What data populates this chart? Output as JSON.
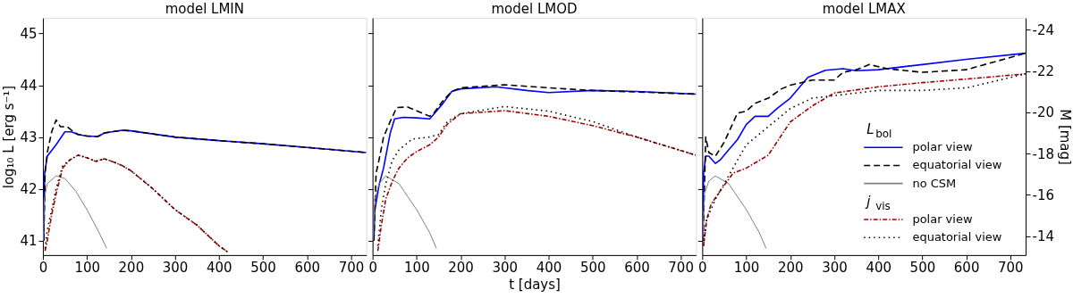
{
  "chart_data": [
    {
      "type": "line",
      "title": "model LMIN",
      "ylabel": "log₁₀ L [erg s⁻¹]",
      "xlim": [
        0,
        735
      ],
      "xticks": [
        0,
        100,
        200,
        300,
        400,
        500,
        600,
        700
      ],
      "ylim": [
        40.72,
        45.3
      ],
      "yticks": [
        41,
        42,
        43,
        44,
        45
      ],
      "grid": false,
      "legend": false,
      "marker": "none",
      "series": [
        {
          "color": "#0000ff",
          "line_style": "solid",
          "x": [
            2,
            4,
            10,
            30,
            50,
            65,
            80,
            100,
            125,
            140,
            180,
            200,
            300,
            400,
            500,
            600,
            735
          ],
          "values": [
            41.0,
            42.3,
            42.63,
            42.85,
            43.1,
            43.1,
            43.05,
            43.02,
            43.01,
            43.08,
            43.13,
            43.12,
            43.0,
            42.93,
            42.87,
            42.8,
            42.7
          ]
        },
        {
          "color": "#000000",
          "line_style": "dashed",
          "x": [
            2,
            5,
            10,
            20,
            30,
            40,
            55,
            70,
            80,
            100,
            125,
            140,
            180,
            200,
            300,
            400,
            500,
            600,
            735
          ],
          "values": [
            41.0,
            42.3,
            42.7,
            43.1,
            43.33,
            43.2,
            43.2,
            43.1,
            43.05,
            43.02,
            43.01,
            43.08,
            43.13,
            43.12,
            43.0,
            42.93,
            42.87,
            42.8,
            42.7
          ]
        },
        {
          "color": "#808080",
          "line_style": "solid",
          "x": [
            1,
            3,
            10,
            30,
            50,
            75,
            100,
            125,
            145
          ],
          "values": [
            41.0,
            41.8,
            42.1,
            42.25,
            42.2,
            41.95,
            41.6,
            41.2,
            40.85
          ]
        },
        {
          "color": "#a00000",
          "line_style": "dashdot",
          "x": [
            5,
            10,
            20,
            30,
            45,
            60,
            80,
            100,
            120,
            140,
            160,
            180,
            200,
            250,
            300,
            350,
            400,
            420
          ],
          "values": [
            40.8,
            41.0,
            41.5,
            41.9,
            42.4,
            42.55,
            42.65,
            42.6,
            42.53,
            42.58,
            42.52,
            42.45,
            42.35,
            42.0,
            41.6,
            41.3,
            40.9,
            40.78
          ]
        },
        {
          "color": "#000000",
          "line_style": "dotted",
          "x": [
            5,
            10,
            20,
            30,
            45,
            60,
            80,
            100,
            120,
            140,
            160,
            180,
            200,
            250,
            300,
            350,
            400,
            420
          ],
          "values": [
            40.85,
            41.2,
            41.6,
            42.0,
            42.45,
            42.55,
            42.65,
            42.6,
            42.53,
            42.58,
            42.52,
            42.45,
            42.35,
            42.0,
            41.6,
            41.3,
            40.9,
            40.78
          ]
        }
      ]
    },
    {
      "type": "line",
      "title": "model LMOD",
      "xlabel": "t [days]",
      "xlim": [
        0,
        735
      ],
      "xticks": [
        0,
        100,
        200,
        300,
        400,
        500,
        600,
        700
      ],
      "ylim": [
        40.72,
        45.3
      ],
      "yticks": [
        41,
        42,
        43,
        44,
        45
      ],
      "tick_labels": "x",
      "grid": false,
      "legend": false,
      "marker": "none",
      "series": [
        {
          "color": "#0000ff",
          "line_style": "solid",
          "x": [
            3,
            5,
            15,
            25,
            40,
            50,
            70,
            100,
            130,
            140,
            160,
            180,
            200,
            280,
            350,
            400,
            500,
            600,
            735
          ],
          "values": [
            41.0,
            41.58,
            42.08,
            42.4,
            43.07,
            43.35,
            43.38,
            43.37,
            43.35,
            43.45,
            43.65,
            43.88,
            43.93,
            43.97,
            43.9,
            43.86,
            43.9,
            43.88,
            43.83
          ]
        },
        {
          "color": "#000000",
          "line_style": "dashed",
          "x": [
            3,
            8,
            15,
            25,
            40,
            55,
            80,
            130,
            140,
            160,
            180,
            200,
            300,
            400,
            500,
            600,
            735
          ],
          "values": [
            41.0,
            42.3,
            42.57,
            43.0,
            43.3,
            43.57,
            43.58,
            43.4,
            43.47,
            43.7,
            43.88,
            43.95,
            44.01,
            43.95,
            43.9,
            43.87,
            43.83
          ]
        },
        {
          "color": "#808080",
          "line_style": "solid",
          "x": [
            1,
            5,
            15,
            30,
            60,
            100,
            130,
            145
          ],
          "values": [
            41.0,
            41.8,
            42.1,
            42.25,
            42.1,
            41.6,
            41.15,
            40.85
          ]
        },
        {
          "color": "#a00000",
          "line_style": "dashdot",
          "x": [
            12,
            20,
            30,
            45,
            60,
            80,
            100,
            130,
            150,
            170,
            200,
            300,
            400,
            500,
            600,
            735
          ],
          "values": [
            40.8,
            41.3,
            41.8,
            42.15,
            42.4,
            42.6,
            42.72,
            42.85,
            43.0,
            43.25,
            43.45,
            43.51,
            43.4,
            43.22,
            43.0,
            42.65
          ]
        },
        {
          "color": "#000000",
          "line_style": "dotted",
          "x": [
            12,
            20,
            30,
            45,
            60,
            90,
            130,
            150,
            170,
            200,
            300,
            400,
            500,
            600,
            735
          ],
          "values": [
            40.9,
            41.6,
            42.1,
            42.55,
            42.75,
            42.96,
            43.0,
            43.05,
            43.3,
            43.45,
            43.59,
            43.5,
            43.3,
            43.0,
            42.65
          ]
        }
      ]
    },
    {
      "type": "line",
      "title": "model LMAX",
      "y2label": "M [mag]",
      "xlim": [
        0,
        735
      ],
      "xticks": [
        0,
        100,
        200,
        300,
        400,
        500,
        600,
        700
      ],
      "ylim": [
        40.72,
        45.3
      ],
      "yticks": [
        41,
        42,
        43,
        44,
        45
      ],
      "y2lim": [
        -13.08,
        -24.58
      ],
      "y2ticks": [
        {
          "value": -14,
          "label": "-14"
        },
        {
          "value": -16,
          "label": "-16"
        },
        {
          "value": -18,
          "label": "-18"
        },
        {
          "value": -20,
          "label": "-20"
        },
        {
          "value": -22,
          "label": "-22"
        },
        {
          "value": -24,
          "label": "-24"
        }
      ],
      "tick_labels": "x",
      "grid": false,
      "legend": "bottom right",
      "marker": "none",
      "legend_title": "L$_{bol}$",
      "annotations": [
        "j$_{vis}$"
      ],
      "series": [
        {
          "name": "polar view",
          "color": "#0000ff",
          "line_style": "solid",
          "x": [
            2,
            3,
            8,
            15,
            30,
            40,
            60,
            80,
            100,
            120,
            150,
            170,
            200,
            240,
            280,
            320,
            350,
            400,
            500,
            600,
            735
          ],
          "values": [
            41.0,
            42.3,
            42.63,
            42.63,
            42.49,
            42.55,
            42.75,
            42.95,
            43.24,
            43.4,
            43.4,
            43.55,
            43.75,
            44.15,
            44.29,
            44.32,
            44.28,
            44.3,
            44.4,
            44.5,
            44.62
          ]
        },
        {
          "name": "equatorial view",
          "color": "#000000",
          "line_style": "dashed",
          "x": [
            2,
            8,
            15,
            30,
            50,
            80,
            100,
            120,
            150,
            180,
            200,
            250,
            300,
            320,
            350,
            380,
            420,
            500,
            600,
            735
          ],
          "values": [
            41.0,
            43.0,
            42.7,
            42.63,
            42.9,
            43.46,
            43.5,
            43.65,
            43.75,
            43.93,
            44.0,
            44.1,
            44.1,
            44.25,
            44.3,
            44.4,
            44.32,
            44.25,
            44.3,
            44.62
          ]
        },
        {
          "name": "no CSM",
          "color": "#808080",
          "line_style": "solid",
          "x": [
            1,
            5,
            15,
            30,
            60,
            100,
            130,
            145
          ],
          "values": [
            41.0,
            41.9,
            42.15,
            42.25,
            42.1,
            41.6,
            41.15,
            40.85
          ]
        },
        {
          "name": "polar view",
          "color": "#a00000",
          "line_style": "dashdot",
          "x": [
            3,
            10,
            20,
            40,
            70,
            100,
            150,
            200,
            250,
            300,
            400,
            500,
            600,
            735
          ],
          "values": [
            40.9,
            41.4,
            41.7,
            41.95,
            42.3,
            42.4,
            42.65,
            43.29,
            43.6,
            43.85,
            43.97,
            44.05,
            44.12,
            44.22
          ]
        },
        {
          "name": "equatorial view",
          "color": "#000000",
          "line_style": "dotted",
          "x": [
            3,
            10,
            30,
            60,
            100,
            150,
            200,
            250,
            300,
            400,
            500,
            600,
            735
          ],
          "values": [
            40.9,
            41.4,
            41.8,
            42.25,
            42.85,
            43.2,
            43.55,
            43.75,
            43.8,
            43.9,
            43.9,
            43.95,
            44.22
          ]
        }
      ]
    }
  ]
}
